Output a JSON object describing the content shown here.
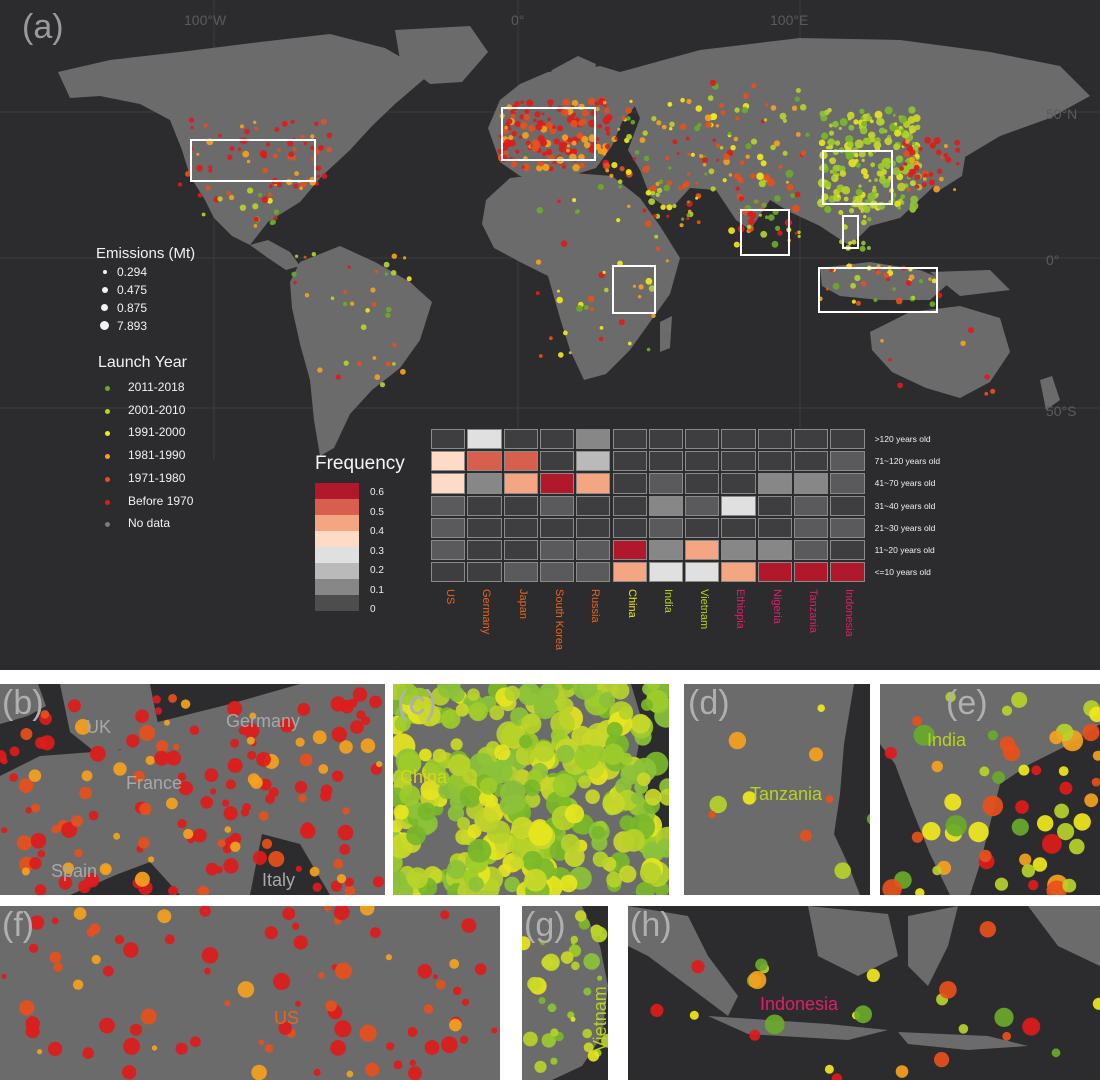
{
  "panel_a": {
    "label": "(a)",
    "lon_ticks": [
      "100°W",
      "0°",
      "100°E"
    ],
    "lat_ticks": [
      "50°N",
      "0°",
      "50°S"
    ],
    "emissions_legend": {
      "title": "Emissions (Mt)",
      "items": [
        "0.294",
        "0.475",
        "0.875",
        "7.893"
      ]
    },
    "launch_year_legend": {
      "title": "Launch Year",
      "items": [
        {
          "label": "2011-2018",
          "color": "#6aaa2a"
        },
        {
          "label": "2001-2010",
          "color": "#b7d22a"
        },
        {
          "label": "1991-2000",
          "color": "#f0e81c"
        },
        {
          "label": "1981-1990",
          "color": "#f5a21e"
        },
        {
          "label": "1971-1980",
          "color": "#e8501c"
        },
        {
          "label": "Before 1970",
          "color": "#e01b1b"
        },
        {
          "label": "No data",
          "color": "#7a7a7a"
        }
      ]
    },
    "frequency_legend": {
      "title": "Frequency",
      "ticks": [
        "0.6",
        "0.5",
        "0.4",
        "0.3",
        "0.2",
        "0.1",
        "0"
      ]
    },
    "heatmap": {
      "countries": [
        {
          "name": "US",
          "color": "#e8641e"
        },
        {
          "name": "Germany",
          "color": "#e8641e"
        },
        {
          "name": "Japan",
          "color": "#e8641e"
        },
        {
          "name": "South Korea",
          "color": "#e8641e"
        },
        {
          "name": "Russia",
          "color": "#e8641e"
        },
        {
          "name": "China",
          "color": "#e6e61e"
        },
        {
          "name": "India",
          "color": "#b9d21e"
        },
        {
          "name": "Vietnam",
          "color": "#b9d21e"
        },
        {
          "name": "Ethiopia",
          "color": "#e01e6a"
        },
        {
          "name": "Nigeria",
          "color": "#e01e6a"
        },
        {
          "name": "Tanzania",
          "color": "#e01e6a"
        },
        {
          "name": "Indonesia",
          "color": "#e01e6a"
        }
      ],
      "age_bins": [
        ">120 years old",
        "71~120 years old",
        "41~70 years old",
        "31~40 years old",
        "21~30 years old",
        "11~20 years old",
        "<=10 years old"
      ],
      "values": [
        [
          0.05,
          0.3,
          0.05,
          0.05,
          0.2,
          0.05,
          0.05,
          0.05,
          0.05,
          0.05,
          0.05,
          0.05
        ],
        [
          0.38,
          0.5,
          0.5,
          0.05,
          0.25,
          0.05,
          0.05,
          0.05,
          0.05,
          0.05,
          0.05,
          0.15
        ],
        [
          0.38,
          0.22,
          0.42,
          0.6,
          0.42,
          0.05,
          0.15,
          0.05,
          0.05,
          0.22,
          0.22,
          0.15
        ],
        [
          0.15,
          0.05,
          0.05,
          0.15,
          0.05,
          0.05,
          0.22,
          0.15,
          0.3,
          0.05,
          0.15,
          0.05
        ],
        [
          0.1,
          0.05,
          0.05,
          0.05,
          0.05,
          0.05,
          0.15,
          0.05,
          0.05,
          0.05,
          0.1,
          0.15
        ],
        [
          0.15,
          0.05,
          0.05,
          0.15,
          0.1,
          0.6,
          0.22,
          0.42,
          0.22,
          0.22,
          0.15,
          0.05
        ],
        [
          0.05,
          0.05,
          0.1,
          0.15,
          0.15,
          0.42,
          0.3,
          0.3,
          0.42,
          0.6,
          0.6,
          0.6
        ]
      ]
    }
  },
  "panels": [
    {
      "id": "b",
      "label": "(b)",
      "regions": [
        {
          "name": "UK",
          "color": "#a8a8a8"
        },
        {
          "name": "Germany",
          "color": "#a8a8a8"
        },
        {
          "name": "France",
          "color": "#a8a8a8"
        },
        {
          "name": "Spain",
          "color": "#a8a8a8"
        },
        {
          "name": "Italy",
          "color": "#a8a8a8"
        }
      ]
    },
    {
      "id": "c",
      "label": "(c)",
      "regions": [
        {
          "name": "China",
          "color": "#d6d61e"
        }
      ]
    },
    {
      "id": "d",
      "label": "(d)",
      "regions": [
        {
          "name": "Tanzania",
          "color": "#b9d21e"
        }
      ]
    },
    {
      "id": "e",
      "label": "(e)",
      "regions": [
        {
          "name": "India",
          "color": "#b9d21e"
        }
      ]
    },
    {
      "id": "f",
      "label": "(f)",
      "regions": [
        {
          "name": "US",
          "color": "#e8641e"
        }
      ]
    },
    {
      "id": "g",
      "label": "(g)",
      "regions": [
        {
          "name": "Vietnam",
          "color": "#b9d21e"
        }
      ]
    },
    {
      "id": "h",
      "label": "(h)",
      "regions": [
        {
          "name": "Indonesia",
          "color": "#e01e6a"
        }
      ]
    }
  ],
  "colors": {
    "background": "#2c2c2e",
    "land": "#6b6b6b",
    "grid": "#3c3c3e",
    "box": "#ffffff"
  }
}
